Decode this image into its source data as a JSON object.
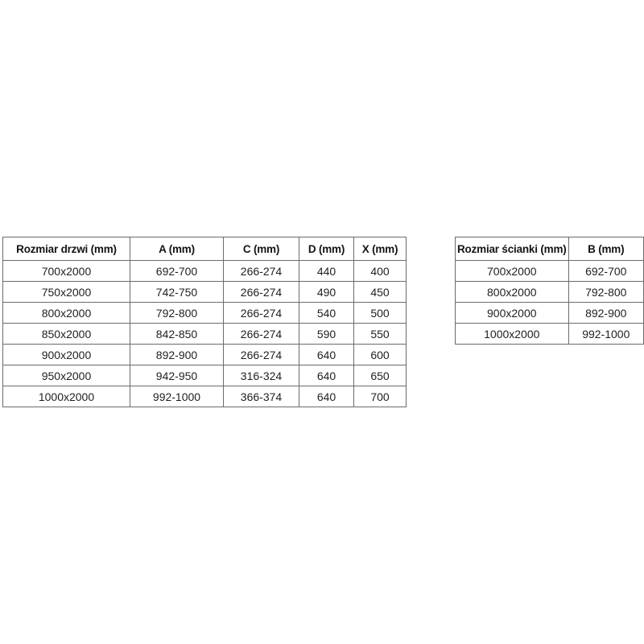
{
  "colors": {
    "background": "#ffffff",
    "border": "#6b6b6b",
    "header_text": "#141414",
    "cell_text": "#1f1f1f"
  },
  "tables": [
    {
      "name": "door-sizes",
      "headers": [
        "Rozmiar drzwi (mm)",
        "A (mm)",
        "C (mm)",
        "D (mm)",
        "X (mm)"
      ],
      "rows": [
        [
          "700x2000",
          "692-700",
          "266-274",
          "440",
          "400"
        ],
        [
          "750x2000",
          "742-750",
          "266-274",
          "490",
          "450"
        ],
        [
          "800x2000",
          "792-800",
          "266-274",
          "540",
          "500"
        ],
        [
          "850x2000",
          "842-850",
          "266-274",
          "590",
          "550"
        ],
        [
          "900x2000",
          "892-900",
          "266-274",
          "640",
          "600"
        ],
        [
          "950x2000",
          "942-950",
          "316-324",
          "640",
          "650"
        ],
        [
          "1000x2000",
          "992-1000",
          "366-374",
          "640",
          "700"
        ]
      ]
    },
    {
      "name": "wall-sizes",
      "headers": [
        "Rozmiar ścianki (mm)",
        "B (mm)"
      ],
      "rows": [
        [
          "700x2000",
          "692-700"
        ],
        [
          "800x2000",
          "792-800"
        ],
        [
          "900x2000",
          "892-900"
        ],
        [
          "1000x2000",
          "992-1000"
        ]
      ]
    }
  ]
}
